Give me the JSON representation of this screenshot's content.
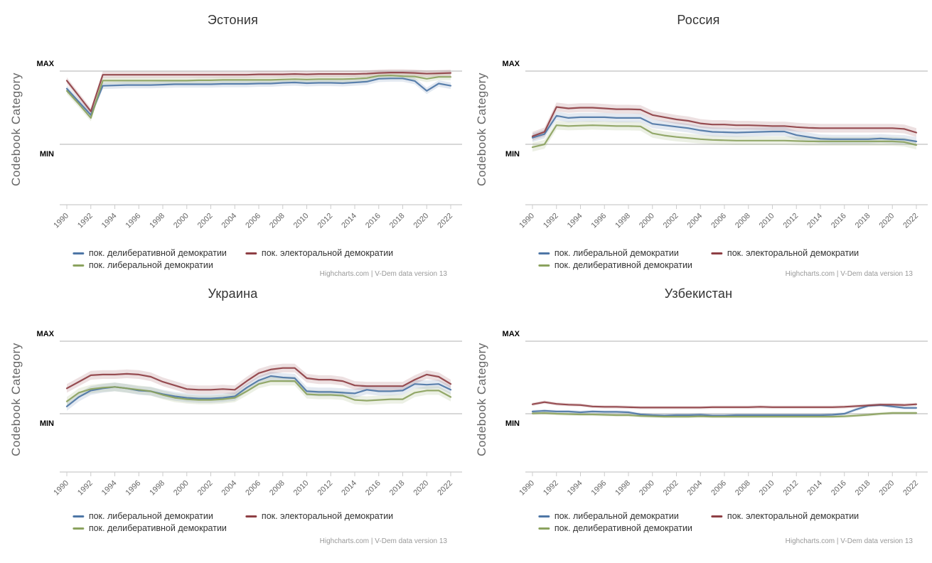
{
  "credits": "Highcharts.com | V-Dem data version 13",
  "palette": {
    "blue": "#4e76a6",
    "green": "#8ba25e",
    "red": "#8e3f44",
    "grid": "#d8d8d8",
    "axis": "#cccccc"
  },
  "chart_data": [
    {
      "type": "line",
      "title": "Эстония",
      "ylabel": "Codebook Category",
      "ytick_labels": [
        "MIN",
        "MAX"
      ],
      "ylim": [
        0,
        1
      ],
      "band": 0.045,
      "x_ticks": [
        "1990",
        "1992",
        "1994",
        "1996",
        "1998",
        "2000",
        "2002",
        "2004",
        "2006",
        "2008",
        "2010",
        "2012",
        "2014",
        "2016",
        "2018",
        "2020",
        "2022"
      ],
      "x": [
        1990,
        1991,
        1992,
        1993,
        1994,
        1995,
        1996,
        1997,
        1998,
        1999,
        2000,
        2001,
        2002,
        2003,
        2004,
        2005,
        2006,
        2007,
        2008,
        2009,
        2010,
        2011,
        2012,
        2013,
        2014,
        2015,
        2016,
        2017,
        2018,
        2019,
        2020,
        2021,
        2022
      ],
      "series": [
        {
          "name": "пок. делиберативной демократии",
          "color": "#4e76a6",
          "values": [
            0.76,
            0.58,
            0.4,
            0.8,
            0.805,
            0.81,
            0.81,
            0.81,
            0.815,
            0.82,
            0.82,
            0.82,
            0.82,
            0.825,
            0.825,
            0.825,
            0.83,
            0.83,
            0.84,
            0.845,
            0.835,
            0.84,
            0.84,
            0.835,
            0.845,
            0.855,
            0.895,
            0.9,
            0.9,
            0.865,
            0.73,
            0.83,
            0.8
          ]
        },
        {
          "name": "пок. либеральной демократии",
          "color": "#8ba25e",
          "values": [
            0.73,
            0.55,
            0.36,
            0.87,
            0.87,
            0.87,
            0.87,
            0.87,
            0.87,
            0.87,
            0.87,
            0.875,
            0.875,
            0.88,
            0.88,
            0.88,
            0.88,
            0.88,
            0.885,
            0.89,
            0.885,
            0.89,
            0.89,
            0.89,
            0.895,
            0.905,
            0.935,
            0.94,
            0.93,
            0.925,
            0.895,
            0.92,
            0.92
          ]
        },
        {
          "name": "пок. электоральной демократии",
          "color": "#8e3f44",
          "values": [
            0.87,
            0.66,
            0.45,
            0.95,
            0.95,
            0.95,
            0.95,
            0.95,
            0.95,
            0.95,
            0.95,
            0.95,
            0.95,
            0.95,
            0.95,
            0.95,
            0.955,
            0.955,
            0.955,
            0.96,
            0.955,
            0.96,
            0.96,
            0.96,
            0.96,
            0.965,
            0.975,
            0.98,
            0.98,
            0.975,
            0.965,
            0.97,
            0.975
          ]
        }
      ]
    },
    {
      "type": "line",
      "title": "Россия",
      "ylabel": "Codebook Category",
      "ytick_labels": [
        "MIN",
        "MAX"
      ],
      "ylim": [
        0,
        1
      ],
      "band": 0.06,
      "x_ticks": [
        "1990",
        "1992",
        "1994",
        "1996",
        "1998",
        "2000",
        "2002",
        "2004",
        "2006",
        "2008",
        "2010",
        "2012",
        "2014",
        "2016",
        "2018",
        "2020",
        "2022"
      ],
      "x": [
        1990,
        1991,
        1992,
        1993,
        1994,
        1995,
        1996,
        1997,
        1998,
        1999,
        2000,
        2001,
        2002,
        2003,
        2004,
        2005,
        2006,
        2007,
        2008,
        2009,
        2010,
        2011,
        2012,
        2013,
        2014,
        2015,
        2016,
        2017,
        2018,
        2019,
        2020,
        2021,
        2022
      ],
      "series": [
        {
          "name": "пок. либеральной демократии",
          "color": "#4e76a6",
          "values": [
            0.09,
            0.14,
            0.39,
            0.36,
            0.37,
            0.37,
            0.37,
            0.36,
            0.36,
            0.36,
            0.28,
            0.26,
            0.24,
            0.22,
            0.19,
            0.17,
            0.165,
            0.16,
            0.165,
            0.17,
            0.175,
            0.175,
            0.125,
            0.1,
            0.075,
            0.07,
            0.07,
            0.07,
            0.07,
            0.08,
            0.07,
            0.065,
            0.04
          ]
        },
        {
          "name": "пок. делиберативной демократии",
          "color": "#8ba25e",
          "values": [
            -0.04,
            0.0,
            0.26,
            0.25,
            0.255,
            0.26,
            0.255,
            0.25,
            0.25,
            0.245,
            0.15,
            0.12,
            0.1,
            0.085,
            0.07,
            0.06,
            0.055,
            0.05,
            0.05,
            0.05,
            0.05,
            0.05,
            0.045,
            0.04,
            0.04,
            0.04,
            0.04,
            0.04,
            0.04,
            0.04,
            0.04,
            0.03,
            -0.01
          ]
        },
        {
          "name": "пок. электоральной демократии",
          "color": "#8e3f44",
          "values": [
            0.11,
            0.17,
            0.51,
            0.49,
            0.5,
            0.5,
            0.49,
            0.48,
            0.48,
            0.475,
            0.4,
            0.37,
            0.34,
            0.32,
            0.285,
            0.27,
            0.27,
            0.26,
            0.26,
            0.255,
            0.25,
            0.25,
            0.235,
            0.225,
            0.22,
            0.22,
            0.22,
            0.22,
            0.22,
            0.22,
            0.22,
            0.21,
            0.16
          ]
        }
      ]
    },
    {
      "type": "line",
      "title": "Украина",
      "ylabel": "Codebook Category",
      "ytick_labels": [
        "MIN",
        "MAX"
      ],
      "ylim": [
        0,
        1
      ],
      "band": 0.06,
      "x_ticks": [
        "1990",
        "1992",
        "1994",
        "1996",
        "1998",
        "2000",
        "2002",
        "2004",
        "2006",
        "2008",
        "2010",
        "2012",
        "2014",
        "2016",
        "2018",
        "2020",
        "2022"
      ],
      "x": [
        1990,
        1991,
        1992,
        1993,
        1994,
        1995,
        1996,
        1997,
        1998,
        1999,
        2000,
        2001,
        2002,
        2003,
        2004,
        2005,
        2006,
        2007,
        2008,
        2009,
        2010,
        2011,
        2012,
        2013,
        2014,
        2015,
        2016,
        2017,
        2018,
        2019,
        2020,
        2021,
        2022
      ],
      "series": [
        {
          "name": "пок. либеральной демократии",
          "color": "#4e76a6",
          "values": [
            0.1,
            0.23,
            0.32,
            0.35,
            0.37,
            0.35,
            0.32,
            0.31,
            0.27,
            0.24,
            0.22,
            0.21,
            0.21,
            0.22,
            0.24,
            0.36,
            0.46,
            0.52,
            0.5,
            0.49,
            0.31,
            0.3,
            0.3,
            0.29,
            0.28,
            0.33,
            0.31,
            0.31,
            0.32,
            0.41,
            0.4,
            0.41,
            0.33
          ]
        },
        {
          "name": "пок. делиберативной демократии",
          "color": "#8ba25e",
          "values": [
            0.17,
            0.29,
            0.34,
            0.36,
            0.37,
            0.35,
            0.33,
            0.31,
            0.26,
            0.22,
            0.2,
            0.19,
            0.19,
            0.2,
            0.22,
            0.31,
            0.41,
            0.45,
            0.45,
            0.45,
            0.27,
            0.26,
            0.26,
            0.25,
            0.19,
            0.18,
            0.19,
            0.2,
            0.2,
            0.29,
            0.32,
            0.32,
            0.23
          ]
        },
        {
          "name": "пок. электоральной демократии",
          "color": "#8e3f44",
          "values": [
            0.35,
            0.44,
            0.53,
            0.54,
            0.54,
            0.55,
            0.54,
            0.51,
            0.44,
            0.39,
            0.34,
            0.33,
            0.33,
            0.34,
            0.33,
            0.45,
            0.56,
            0.61,
            0.63,
            0.63,
            0.49,
            0.47,
            0.47,
            0.45,
            0.39,
            0.38,
            0.38,
            0.38,
            0.38,
            0.47,
            0.54,
            0.51,
            0.41
          ]
        }
      ]
    },
    {
      "type": "line",
      "title": "Узбекистан",
      "ylabel": "Codebook Category",
      "ytick_labels": [
        "MIN",
        "MAX"
      ],
      "ylim": [
        0,
        1
      ],
      "band": 0.022,
      "x_ticks": [
        "1990",
        "1992",
        "1994",
        "1996",
        "1998",
        "2000",
        "2002",
        "2004",
        "2006",
        "2008",
        "2010",
        "2012",
        "2014",
        "2016",
        "2018",
        "2020",
        "2022"
      ],
      "x": [
        1990,
        1991,
        1992,
        1993,
        1994,
        1995,
        1996,
        1997,
        1998,
        1999,
        2000,
        2001,
        2002,
        2003,
        2004,
        2005,
        2006,
        2007,
        2008,
        2009,
        2010,
        2011,
        2012,
        2013,
        2014,
        2015,
        2016,
        2017,
        2018,
        2019,
        2020,
        2021,
        2022
      ],
      "series": [
        {
          "name": "пок. либеральной демократии",
          "color": "#4e76a6",
          "values": [
            0.03,
            0.04,
            0.03,
            0.03,
            0.02,
            0.03,
            0.025,
            0.025,
            0.02,
            -0.01,
            -0.02,
            -0.025,
            -0.02,
            -0.02,
            -0.015,
            -0.025,
            -0.025,
            -0.02,
            -0.02,
            -0.02,
            -0.02,
            -0.02,
            -0.02,
            -0.02,
            -0.02,
            -0.015,
            0.0,
            0.06,
            0.11,
            0.12,
            0.1,
            0.08,
            0.08
          ]
        },
        {
          "name": "пок. делиберативной демократии",
          "color": "#8ba25e",
          "values": [
            0.005,
            0.01,
            0.0,
            -0.005,
            -0.01,
            -0.01,
            -0.015,
            -0.02,
            -0.02,
            -0.03,
            -0.035,
            -0.04,
            -0.04,
            -0.04,
            -0.035,
            -0.04,
            -0.04,
            -0.04,
            -0.04,
            -0.04,
            -0.04,
            -0.04,
            -0.04,
            -0.04,
            -0.04,
            -0.04,
            -0.035,
            -0.025,
            -0.015,
            0.0,
            0.01,
            0.01,
            0.01
          ]
        },
        {
          "name": "пок. электоральной демократии",
          "color": "#8e3f44",
          "values": [
            0.13,
            0.16,
            0.135,
            0.125,
            0.12,
            0.1,
            0.095,
            0.095,
            0.09,
            0.085,
            0.085,
            0.085,
            0.085,
            0.085,
            0.085,
            0.09,
            0.09,
            0.09,
            0.09,
            0.095,
            0.09,
            0.09,
            0.09,
            0.09,
            0.09,
            0.09,
            0.095,
            0.105,
            0.115,
            0.125,
            0.125,
            0.12,
            0.13
          ]
        }
      ]
    }
  ]
}
